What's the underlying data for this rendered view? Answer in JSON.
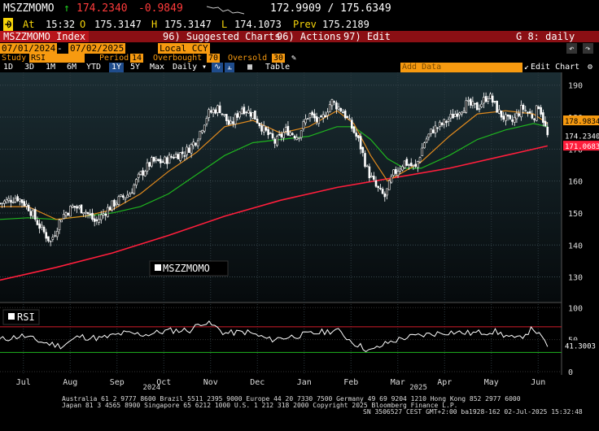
{
  "quote": {
    "ticker": "MSZZMOMO",
    "last": "174.2340",
    "change": "-0.9849",
    "arrow": "↑",
    "range": "172.9909 / 175.6349",
    "at_label": "At",
    "time": "15:32",
    "o_label": "O",
    "open": "175.3147",
    "h_label": "H",
    "high": "175.3147",
    "l_label": "L",
    "low": "174.1073",
    "prev_label": "Prev",
    "prev": "175.2189"
  },
  "menu": {
    "security": "MSZZMOMO Index",
    "suggested": "96) Suggested Charts",
    "actions": "96) Actions",
    "edit": "97) Edit",
    "page": "G 8: daily"
  },
  "settings": {
    "start_date": "07/01/2024",
    "end_date": "07/02/2025",
    "currency": "Local CCY",
    "study_label": "Study",
    "study_value": "RSI",
    "period_label": "Period",
    "period_value": "14",
    "overbought_label": "Overbought",
    "overbought_value": "70",
    "oversold_label": "Oversold",
    "oversold_value": "30"
  },
  "toolbar": {
    "ranges": [
      "1D",
      "3D",
      "1M",
      "6M",
      "YTD",
      "1Y",
      "5Y",
      "Max"
    ],
    "selected_range": "1Y",
    "frequency": "Daily",
    "table": "Table",
    "add_data": "Add Data",
    "edit_chart": "Edit Chart"
  },
  "footer": {
    "line1": "Australia 61 2 9777 8600 Brazil 5511 2395 9000 Europe 44 20 7330 7500 Germany 49 69 9204 1210 Hong Kong 852 2977 6000",
    "line2": "Japan 81 3 4565 8900       Singapore 65 6212 1000      U.S. 1 212 318 2000             Copyright 2025 Bloomberg Finance L.P.",
    "line3": "SN 3506527 CEST GMT+2:00 ba1928-162 02-Jul-2025 15:32:48"
  },
  "colors": {
    "price": "#ffffff",
    "ma_short": "#e08a1e",
    "ma_mid": "#1fb51f",
    "ma_long": "#ff1e3c",
    "rsi": "#ffffff",
    "rsi_upper": "#d01c2a",
    "rsi_lower": "#1fb51f",
    "accent": "#f79a10"
  },
  "chart_data": [
    {
      "type": "candlestick",
      "legend": "MSZZMOMO",
      "yticks": [
        130,
        140,
        150,
        160,
        170,
        180,
        190
      ],
      "ylim": [
        122,
        194
      ],
      "xticks": [
        "Jul",
        "Aug",
        "Sep",
        "Oct",
        "Nov",
        "Dec",
        "Jan",
        "Feb",
        "Mar",
        "Apr",
        "May",
        "Jun"
      ],
      "year_labels": [
        "2024",
        "2025"
      ],
      "last_value": 174.234,
      "label_orange": 178.9834,
      "label_red": 171.0683,
      "price_path": [
        [
          0,
          153
        ],
        [
          0.03,
          155
        ],
        [
          0.05,
          152
        ],
        [
          0.07,
          146
        ],
        [
          0.09,
          141
        ],
        [
          0.11,
          149
        ],
        [
          0.13,
          152
        ],
        [
          0.15,
          151
        ],
        [
          0.17,
          147
        ],
        [
          0.19,
          151
        ],
        [
          0.21,
          154
        ],
        [
          0.23,
          156
        ],
        [
          0.25,
          162
        ],
        [
          0.27,
          166
        ],
        [
          0.29,
          166
        ],
        [
          0.31,
          168
        ],
        [
          0.33,
          169
        ],
        [
          0.35,
          173
        ],
        [
          0.37,
          181
        ],
        [
          0.39,
          183
        ],
        [
          0.41,
          177
        ],
        [
          0.43,
          183
        ],
        [
          0.45,
          181
        ],
        [
          0.47,
          176
        ],
        [
          0.49,
          172
        ],
        [
          0.51,
          176
        ],
        [
          0.53,
          174
        ],
        [
          0.55,
          181
        ],
        [
          0.57,
          178
        ],
        [
          0.59,
          185
        ],
        [
          0.61,
          182
        ],
        [
          0.62,
          179
        ],
        [
          0.64,
          172
        ],
        [
          0.655,
          163
        ],
        [
          0.67,
          158
        ],
        [
          0.685,
          155
        ],
        [
          0.7,
          162
        ],
        [
          0.72,
          166
        ],
        [
          0.74,
          164
        ],
        [
          0.755,
          172
        ],
        [
          0.77,
          176
        ],
        [
          0.79,
          178
        ],
        [
          0.81,
          181
        ],
        [
          0.83,
          184
        ],
        [
          0.85,
          183
        ],
        [
          0.87,
          187
        ],
        [
          0.89,
          181
        ],
        [
          0.91,
          178
        ],
        [
          0.93,
          183
        ],
        [
          0.95,
          180
        ],
        [
          0.96,
          184
        ],
        [
          0.975,
          174
        ]
      ],
      "ma_short_path": [
        [
          0,
          152
        ],
        [
          0.05,
          152
        ],
        [
          0.1,
          148
        ],
        [
          0.15,
          149
        ],
        [
          0.2,
          151
        ],
        [
          0.25,
          156
        ],
        [
          0.3,
          163
        ],
        [
          0.35,
          169
        ],
        [
          0.4,
          177
        ],
        [
          0.45,
          179
        ],
        [
          0.5,
          175
        ],
        [
          0.55,
          177
        ],
        [
          0.6,
          182
        ],
        [
          0.63,
          178
        ],
        [
          0.66,
          168
        ],
        [
          0.69,
          160
        ],
        [
          0.72,
          163
        ],
        [
          0.75,
          166
        ],
        [
          0.8,
          174
        ],
        [
          0.85,
          181
        ],
        [
          0.9,
          182
        ],
        [
          0.95,
          181
        ],
        [
          0.975,
          178
        ]
      ],
      "ma_mid_path": [
        [
          0,
          148
        ],
        [
          0.05,
          148.5
        ],
        [
          0.1,
          148
        ],
        [
          0.15,
          149
        ],
        [
          0.2,
          150
        ],
        [
          0.25,
          152
        ],
        [
          0.3,
          156
        ],
        [
          0.35,
          162
        ],
        [
          0.4,
          168
        ],
        [
          0.45,
          172
        ],
        [
          0.5,
          173
        ],
        [
          0.55,
          174
        ],
        [
          0.6,
          177
        ],
        [
          0.63,
          177
        ],
        [
          0.66,
          173
        ],
        [
          0.69,
          167
        ],
        [
          0.72,
          164
        ],
        [
          0.75,
          164
        ],
        [
          0.8,
          168
        ],
        [
          0.85,
          173
        ],
        [
          0.9,
          176
        ],
        [
          0.95,
          178
        ],
        [
          0.975,
          177
        ]
      ],
      "ma_long_path": [
        [
          0,
          129
        ],
        [
          0.1,
          133
        ],
        [
          0.2,
          137.5
        ],
        [
          0.3,
          143
        ],
        [
          0.4,
          149
        ],
        [
          0.5,
          154
        ],
        [
          0.6,
          158
        ],
        [
          0.7,
          161
        ],
        [
          0.8,
          164
        ],
        [
          0.9,
          168
        ],
        [
          0.975,
          171
        ]
      ]
    },
    {
      "type": "line",
      "legend": "RSI",
      "yticks": [
        0,
        50,
        100
      ],
      "ylim": [
        -5,
        108
      ],
      "overbought": 70,
      "oversold": 30,
      "last_value": 41.3003,
      "rsi_path": [
        [
          0,
          50
        ],
        [
          0.04,
          56
        ],
        [
          0.08,
          45
        ],
        [
          0.11,
          40
        ],
        [
          0.14,
          55
        ],
        [
          0.18,
          52
        ],
        [
          0.22,
          60
        ],
        [
          0.26,
          58
        ],
        [
          0.3,
          64
        ],
        [
          0.34,
          65
        ],
        [
          0.36,
          78
        ],
        [
          0.38,
          72
        ],
        [
          0.4,
          60
        ],
        [
          0.44,
          62
        ],
        [
          0.48,
          50
        ],
        [
          0.52,
          55
        ],
        [
          0.56,
          60
        ],
        [
          0.6,
          65
        ],
        [
          0.63,
          45
        ],
        [
          0.66,
          32
        ],
        [
          0.69,
          45
        ],
        [
          0.72,
          53
        ],
        [
          0.76,
          58
        ],
        [
          0.8,
          62
        ],
        [
          0.84,
          60
        ],
        [
          0.88,
          63
        ],
        [
          0.92,
          50
        ],
        [
          0.95,
          68
        ],
        [
          0.975,
          41
        ]
      ]
    }
  ]
}
